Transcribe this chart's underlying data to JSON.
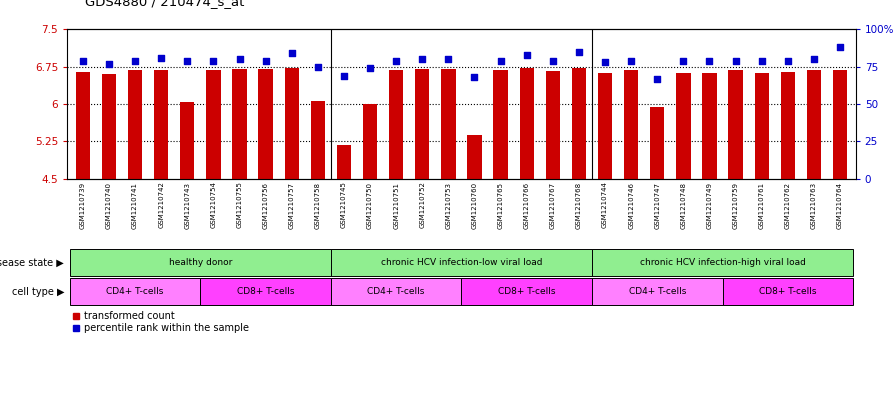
{
  "title": "GDS4880 / 210474_s_at",
  "samples": [
    "GSM1210739",
    "GSM1210740",
    "GSM1210741",
    "GSM1210742",
    "GSM1210743",
    "GSM1210754",
    "GSM1210755",
    "GSM1210756",
    "GSM1210757",
    "GSM1210758",
    "GSM1210745",
    "GSM1210750",
    "GSM1210751",
    "GSM1210752",
    "GSM1210753",
    "GSM1210760",
    "GSM1210765",
    "GSM1210766",
    "GSM1210767",
    "GSM1210768",
    "GSM1210744",
    "GSM1210746",
    "GSM1210747",
    "GSM1210748",
    "GSM1210749",
    "GSM1210759",
    "GSM1210761",
    "GSM1210762",
    "GSM1210763",
    "GSM1210764"
  ],
  "bar_values": [
    6.65,
    6.6,
    6.68,
    6.68,
    6.05,
    6.68,
    6.7,
    6.7,
    6.73,
    6.06,
    5.18,
    6.0,
    6.69,
    6.7,
    6.7,
    5.38,
    6.68,
    6.72,
    6.67,
    6.73,
    6.63,
    6.68,
    5.95,
    6.63,
    6.63,
    6.69,
    6.63,
    6.65,
    6.68,
    6.68
  ],
  "dot_values": [
    79,
    77,
    79,
    81,
    79,
    79,
    80,
    79,
    84,
    75,
    69,
    74,
    79,
    80,
    80,
    68,
    79,
    83,
    79,
    85,
    78,
    79,
    67,
    79,
    79,
    79,
    79,
    79,
    80,
    88
  ],
  "ylim": [
    4.5,
    7.5
  ],
  "yticks": [
    4.5,
    5.25,
    6.0,
    6.75,
    7.5
  ],
  "ytick_labels": [
    "4.5",
    "5.25",
    "6",
    "6.75",
    "7.5"
  ],
  "y2lim": [
    0,
    100
  ],
  "y2ticks": [
    0,
    25,
    50,
    75,
    100
  ],
  "y2tick_labels": [
    "0",
    "25",
    "50",
    "75",
    "100%"
  ],
  "hlines": [
    5.25,
    6.0,
    6.75
  ],
  "bar_color": "#CC0000",
  "dot_color": "#0000CC",
  "ds_groups": [
    {
      "label": "healthy donor",
      "start": 0,
      "end": 9,
      "color": "#90EE90"
    },
    {
      "label": "chronic HCV infection-low viral load",
      "start": 10,
      "end": 19,
      "color": "#90EE90"
    },
    {
      "label": "chronic HCV infection-high viral load",
      "start": 20,
      "end": 29,
      "color": "#90EE90"
    }
  ],
  "ct_groups": [
    {
      "label": "CD4+ T-cells",
      "start": 0,
      "end": 4,
      "color": "#FF80FF"
    },
    {
      "label": "CD8+ T-cells",
      "start": 5,
      "end": 9,
      "color": "#FF80FF"
    },
    {
      "label": "CD4+ T-cells",
      "start": 10,
      "end": 14,
      "color": "#FF80FF"
    },
    {
      "label": "CD8+ T-cells",
      "start": 15,
      "end": 19,
      "color": "#FF80FF"
    },
    {
      "label": "CD4+ T-cells",
      "start": 20,
      "end": 24,
      "color": "#FF80FF"
    },
    {
      "label": "CD8+ T-cells",
      "start": 25,
      "end": 29,
      "color": "#FF80FF"
    }
  ],
  "legend_bar_label": "transformed count",
  "legend_dot_label": "percentile rank within the sample",
  "disease_state_label": "disease state",
  "cell_type_label": "cell type",
  "xtick_bg_color": "#C8C8C8",
  "bg_color": "#FFFFFF",
  "bar_width": 0.55
}
